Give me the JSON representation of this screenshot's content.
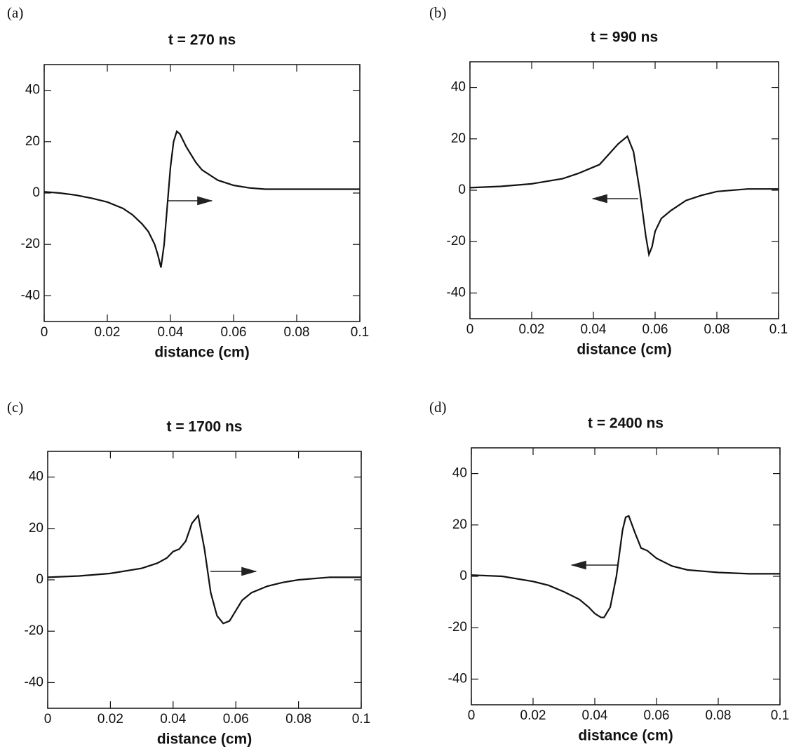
{
  "chart_data": [
    {
      "type": "line",
      "panel_label": "(a)",
      "title": "t = 270 ns",
      "xlabel": "distance (cm)",
      "xlim": [
        0,
        0.1
      ],
      "ylim": [
        -50,
        50
      ],
      "xticks": [
        0,
        0.02,
        0.04,
        0.06,
        0.08,
        0.1
      ],
      "yticks": [
        -40,
        -20,
        0,
        20,
        40
      ],
      "color": "#111111",
      "x": [
        0,
        0.005,
        0.01,
        0.015,
        0.02,
        0.025,
        0.028,
        0.031,
        0.033,
        0.035,
        0.036,
        0.037,
        0.038,
        0.039,
        0.04,
        0.041,
        0.042,
        0.043,
        0.045,
        0.048,
        0.05,
        0.055,
        0.06,
        0.065,
        0.07,
        0.08,
        0.09,
        0.1
      ],
      "values": [
        0.5,
        0,
        -0.8,
        -2,
        -3.5,
        -6,
        -8.5,
        -12,
        -15,
        -20,
        -24,
        -29,
        -20,
        -5,
        10,
        20,
        24,
        23,
        18,
        12,
        9,
        5,
        3,
        2,
        1.5,
        1.5,
        1.5,
        1.5
      ]
    },
    {
      "type": "line",
      "panel_label": "(b)",
      "title": "t = 990 ns",
      "xlabel": "distance (cm)",
      "xlim": [
        0,
        0.1
      ],
      "ylim": [
        -50,
        50
      ],
      "xticks": [
        0,
        0.02,
        0.04,
        0.06,
        0.08,
        0.1
      ],
      "yticks": [
        -40,
        -20,
        0,
        20,
        40
      ],
      "color": "#111111",
      "x": [
        0,
        0.01,
        0.02,
        0.03,
        0.035,
        0.04,
        0.042,
        0.045,
        0.048,
        0.051,
        0.053,
        0.055,
        0.057,
        0.058,
        0.059,
        0.06,
        0.062,
        0.065,
        0.07,
        0.075,
        0.08,
        0.09,
        0.1
      ],
      "values": [
        1,
        1.5,
        2.5,
        4.5,
        6.5,
        9,
        10,
        14,
        18,
        21,
        15,
        0,
        -18,
        -25,
        -22,
        -16,
        -11,
        -8,
        -4,
        -2,
        -0.5,
        0.5,
        0.5
      ]
    },
    {
      "type": "line",
      "panel_label": "(c)",
      "title": "t = 1700 ns",
      "xlabel": "distance (cm)",
      "xlim": [
        0,
        0.1
      ],
      "ylim": [
        -50,
        50
      ],
      "xticks": [
        0,
        0.02,
        0.04,
        0.06,
        0.08,
        0.1
      ],
      "yticks": [
        -40,
        -20,
        0,
        20,
        40
      ],
      "color": "#111111",
      "x": [
        0,
        0.01,
        0.02,
        0.03,
        0.035,
        0.038,
        0.04,
        0.042,
        0.044,
        0.046,
        0.048,
        0.05,
        0.052,
        0.054,
        0.056,
        0.058,
        0.06,
        0.062,
        0.065,
        0.07,
        0.075,
        0.08,
        0.09,
        0.1
      ],
      "values": [
        1,
        1.5,
        2.5,
        4.5,
        6.5,
        8.5,
        11,
        12,
        15,
        22,
        25,
        12,
        -5,
        -14,
        -17,
        -16,
        -12,
        -8,
        -5,
        -2.5,
        -1,
        0,
        1,
        1
      ]
    },
    {
      "type": "line",
      "panel_label": "(d)",
      "title": "t = 2400 ns",
      "xlabel": "distance (cm)",
      "xlim": [
        0,
        0.1
      ],
      "ylim": [
        -50,
        50
      ],
      "xticks": [
        0,
        0.02,
        0.04,
        0.06,
        0.08,
        0.1
      ],
      "yticks": [
        -40,
        -20,
        0,
        20,
        40
      ],
      "color": "#111111",
      "x": [
        0,
        0.01,
        0.02,
        0.025,
        0.03,
        0.035,
        0.038,
        0.04,
        0.042,
        0.043,
        0.045,
        0.047,
        0.049,
        0.05,
        0.051,
        0.053,
        0.055,
        0.057,
        0.06,
        0.065,
        0.07,
        0.08,
        0.09,
        0.1
      ],
      "values": [
        0.5,
        0,
        -2,
        -3.5,
        -6,
        -9,
        -12,
        -14.5,
        -16,
        -16,
        -12,
        0,
        18,
        23,
        23.5,
        17,
        11,
        10,
        7,
        4,
        2.5,
        1.5,
        1,
        1
      ]
    }
  ]
}
